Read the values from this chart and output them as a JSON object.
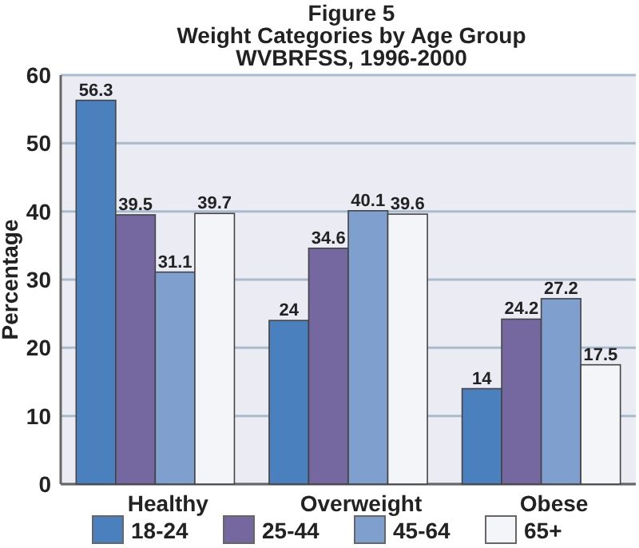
{
  "chart_data": {
    "type": "bar",
    "title": "Figure 5\nWeight Categories by Age Group\nWVBRFSS, 1996-2000",
    "ylabel": "Percentage",
    "categories": [
      "Healthy",
      "Overweight",
      "Obese"
    ],
    "series": [
      {
        "name": "18-24",
        "color": "#4a80bd",
        "values": [
          56.3,
          24,
          14
        ]
      },
      {
        "name": "25-44",
        "color": "#75679f",
        "values": [
          39.5,
          34.6,
          24.2
        ]
      },
      {
        "name": "45-64",
        "color": "#7f9fcf",
        "values": [
          31.1,
          40.1,
          27.2
        ]
      },
      {
        "name": "65+",
        "color": "#f4f5f8",
        "values": [
          39.7,
          39.6,
          17.5
        ]
      }
    ],
    "ylim": [
      0,
      60
    ],
    "yticks": [
      0,
      10,
      20,
      30,
      40,
      50,
      60
    ],
    "grid": "y",
    "legend": "bottom",
    "data_labels": true
  }
}
